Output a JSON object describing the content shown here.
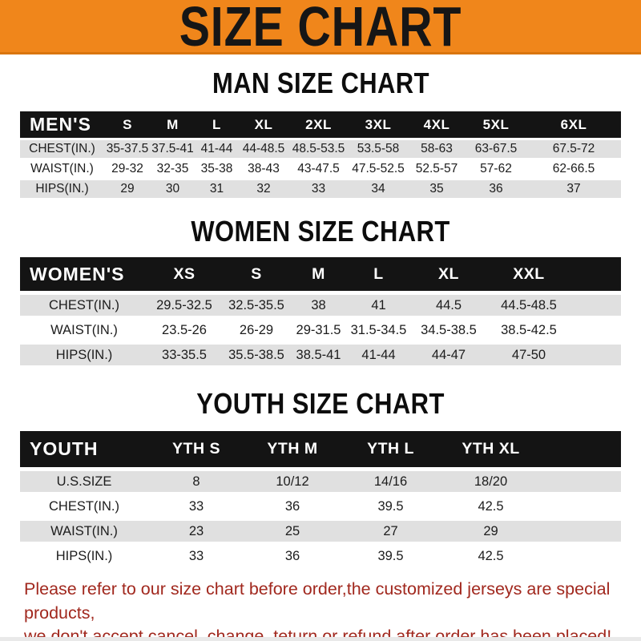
{
  "banner": {
    "title": "SIZE CHART"
  },
  "sections": [
    {
      "heading": "MAN SIZE CHART",
      "table": {
        "label": "MEN'S",
        "columns": [
          "S",
          "M",
          "L",
          "XL",
          "2XL",
          "3XL",
          "4XL",
          "5XL",
          "6XL"
        ],
        "rows": [
          {
            "label": "CHEST(IN.)",
            "values": [
              "35-37.5",
              "37.5-41",
              "41-44",
              "44-48.5",
              "48.5-53.5",
              "53.5-58",
              "58-63",
              "63-67.5",
              "67.5-72"
            ]
          },
          {
            "label": "WAIST(IN.)",
            "values": [
              "29-32",
              "32-35",
              "35-38",
              "38-43",
              "43-47.5",
              "47.5-52.5",
              "52.5-57",
              "57-62",
              "62-66.5"
            ]
          },
          {
            "label": "HIPS(IN.)",
            "values": [
              "29",
              "30",
              "31",
              "32",
              "33",
              "34",
              "35",
              "36",
              "37"
            ]
          }
        ]
      }
    },
    {
      "heading": "WOMEN SIZE CHART",
      "table": {
        "label": "WOMEN'S",
        "columns": [
          "XS",
          "S",
          "M",
          "L",
          "XL",
          "XXL"
        ],
        "rows": [
          {
            "label": "CHEST(IN.)",
            "values": [
              "29.5-32.5",
              "32.5-35.5",
              "38",
              "41",
              "44.5",
              "44.5-48.5"
            ]
          },
          {
            "label": "WAIST(IN.)",
            "values": [
              "23.5-26",
              "26-29",
              "29-31.5",
              "31.5-34.5",
              "34.5-38.5",
              "38.5-42.5"
            ]
          },
          {
            "label": "HIPS(IN.)",
            "values": [
              "33-35.5",
              "35.5-38.5",
              "38.5-41",
              "41-44",
              "44-47",
              "47-50"
            ]
          }
        ]
      }
    },
    {
      "heading": "YOUTH SIZE CHART",
      "table": {
        "label": "YOUTH",
        "columns": [
          "YTH S",
          "YTH M",
          "YTH L",
          "YTH XL"
        ],
        "rows": [
          {
            "label": "U.S.SIZE",
            "values": [
              "8",
              "10/12",
              "14/16",
              "18/20"
            ]
          },
          {
            "label": "CHEST(IN.)",
            "values": [
              "33",
              "36",
              "39.5",
              "42.5"
            ]
          },
          {
            "label": "WAIST(IN.)",
            "values": [
              "23",
              "25",
              "27",
              "29"
            ]
          },
          {
            "label": "HIPS(IN.)",
            "values": [
              "33",
              "36",
              "39.5",
              "42.5"
            ]
          }
        ]
      }
    }
  ],
  "footer": {
    "lines": [
      "Please refer to our size chart before order,the customized jerseys are special products,",
      "we don't accept cancel, change, teturn or refund after order has been placed!"
    ]
  },
  "colors": {
    "banner_bg": "#F0861B",
    "banner_edge": "#D9750F",
    "banner_text": "#161616",
    "header_bar_bg": "#141414",
    "header_bar_text": "#FFFFFF",
    "row_alt_bg": "#E0E0E0",
    "row_bg": "#FFFFFF",
    "footer_text": "#A1281E",
    "bottom_strip": "#E9E9E9"
  }
}
